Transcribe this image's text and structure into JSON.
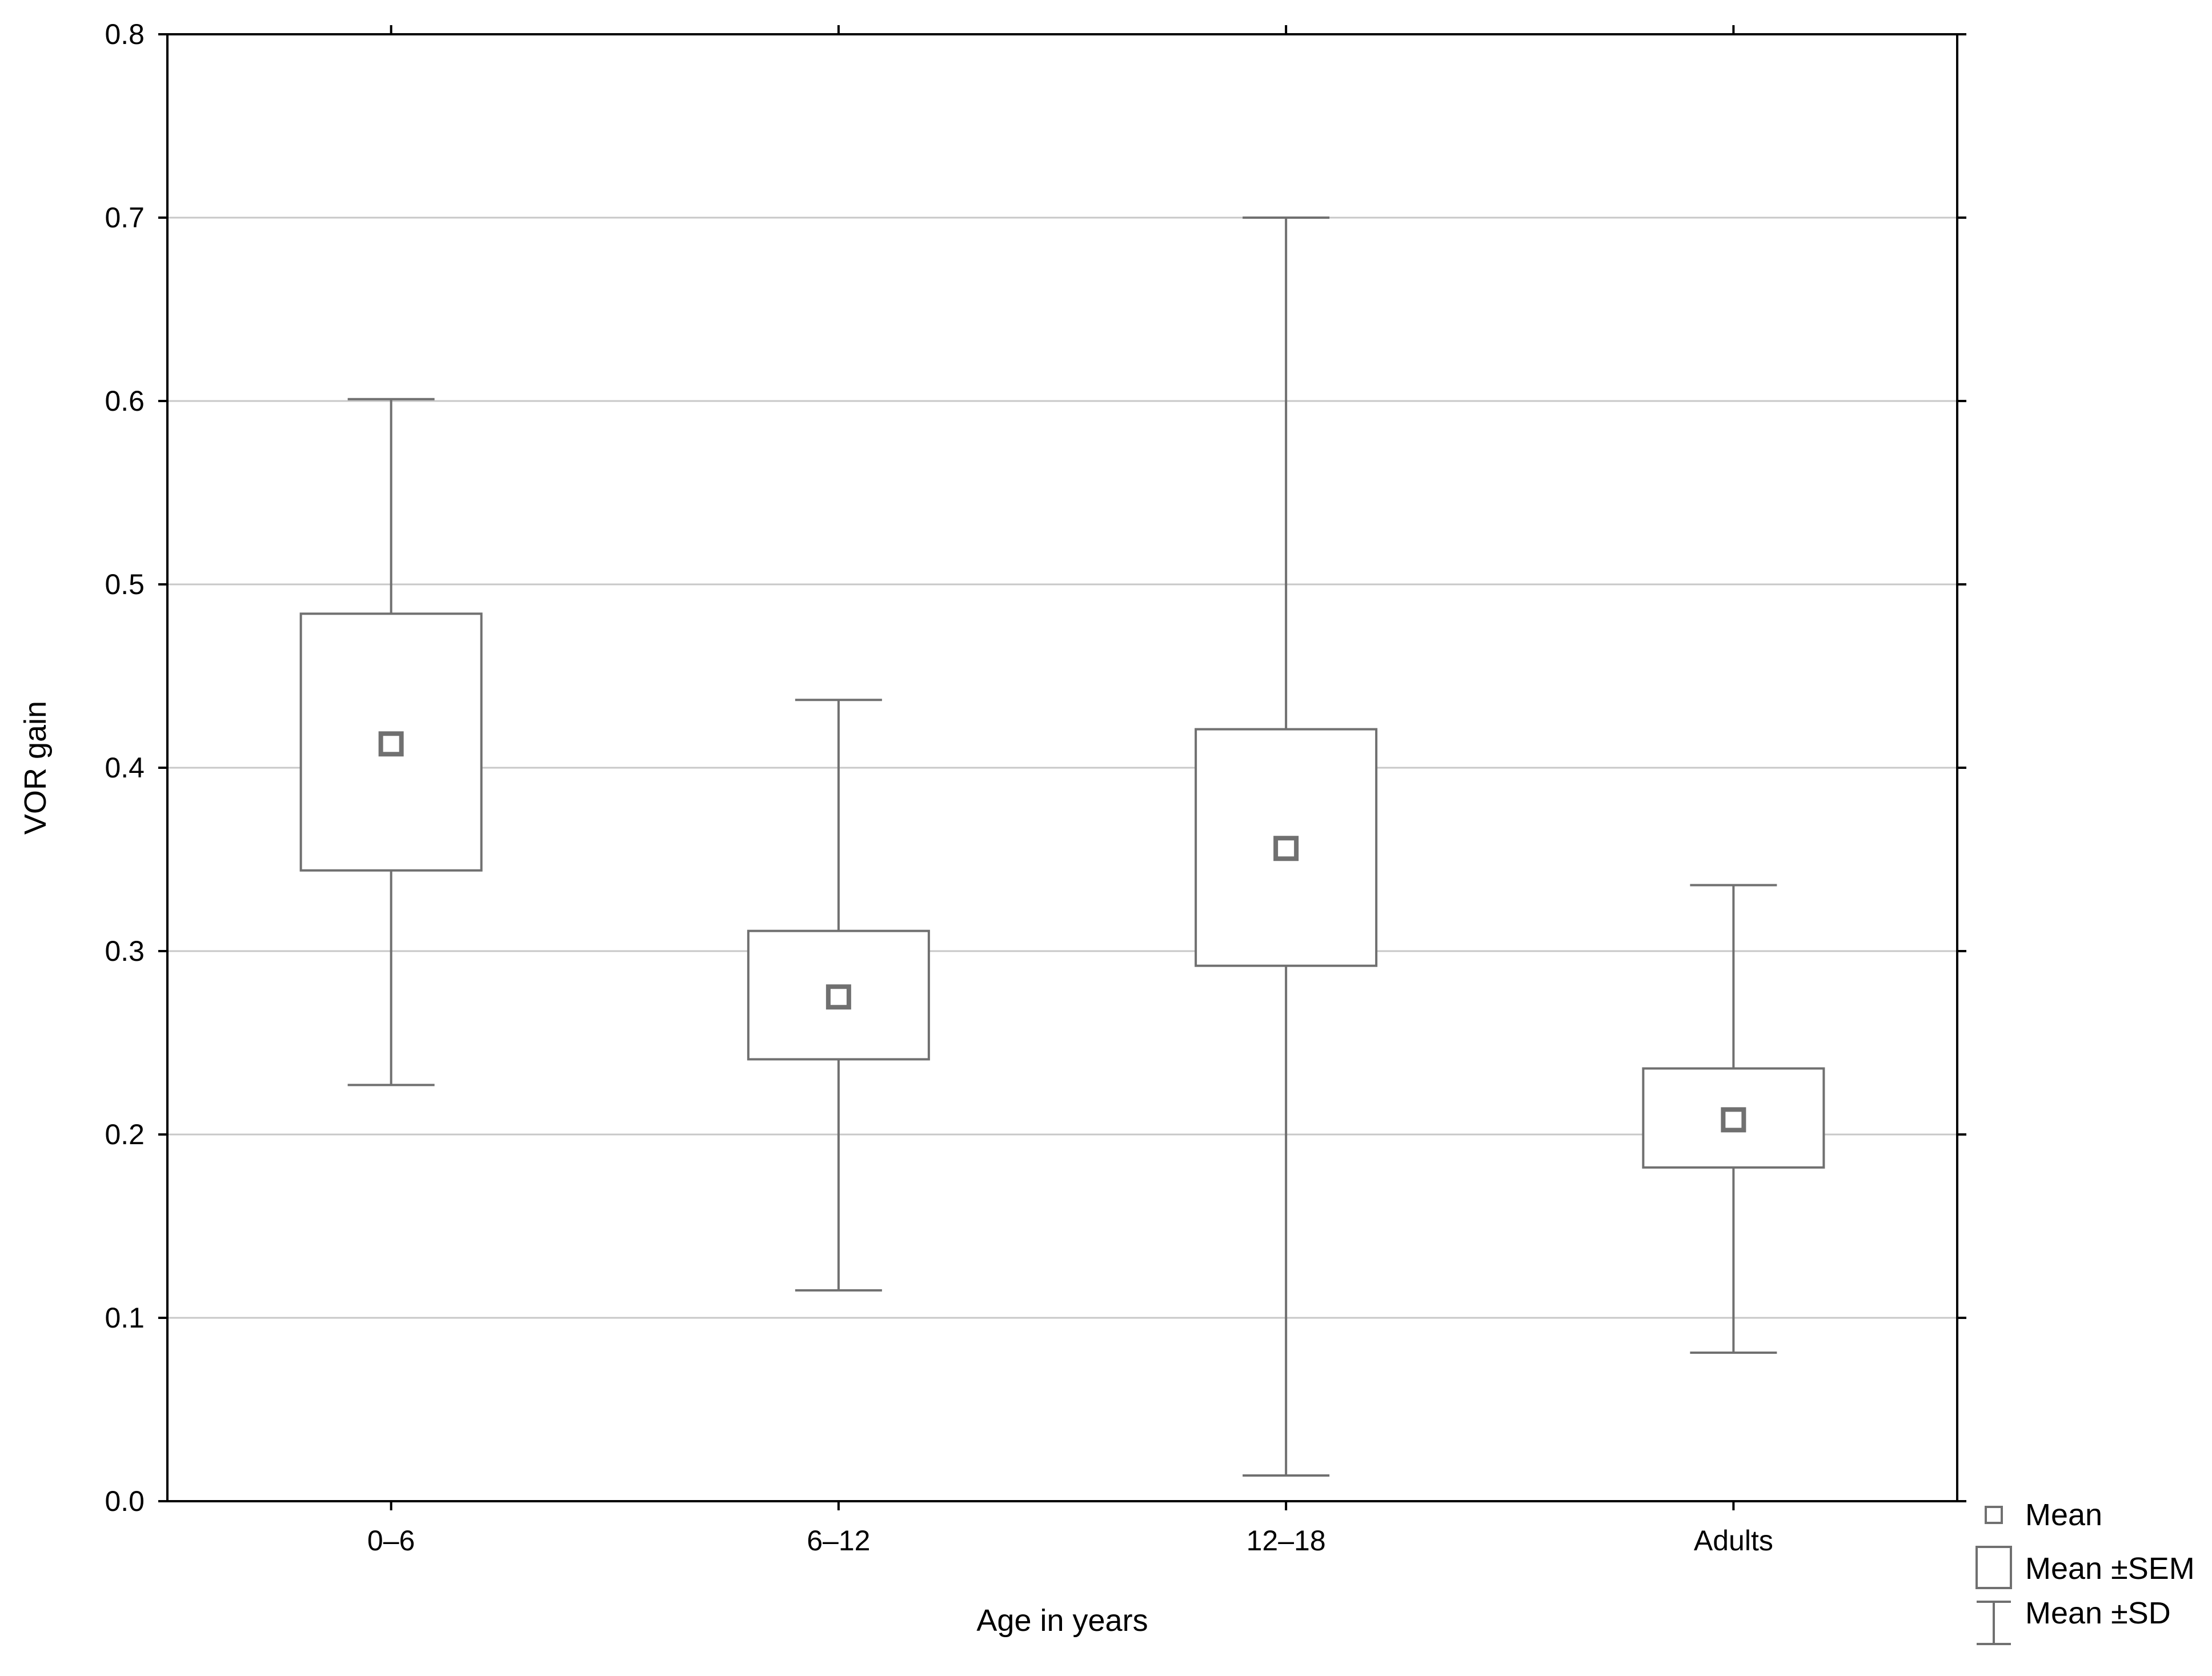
{
  "chart_data": {
    "type": "box",
    "title": "",
    "xlabel": "Age in years",
    "ylabel": "VOR gain",
    "ylim": [
      0.0,
      0.8
    ],
    "yticks": [
      "0.0",
      "0.1",
      "0.2",
      "0.3",
      "0.4",
      "0.5",
      "0.6",
      "0.7",
      "0.8"
    ],
    "grid": true,
    "legend_position": "bottom-right outside plot",
    "categories": [
      "0–6",
      "6–12",
      "12–18",
      "Adults"
    ],
    "series": [
      {
        "category": "0–6",
        "mean": 0.413,
        "sem_low": 0.344,
        "sem_high": 0.484,
        "sd_low": 0.227,
        "sd_high": 0.601
      },
      {
        "category": "6–12",
        "mean": 0.275,
        "sem_low": 0.241,
        "sem_high": 0.311,
        "sd_low": 0.115,
        "sd_high": 0.437
      },
      {
        "category": "12–18",
        "mean": 0.356,
        "sem_low": 0.292,
        "sem_high": 0.421,
        "sd_low": 0.014,
        "sd_high": 0.7
      },
      {
        "category": "Adults",
        "mean": 0.208,
        "sem_low": 0.182,
        "sem_high": 0.236,
        "sd_low": 0.081,
        "sd_high": 0.336
      }
    ],
    "legend": [
      {
        "symbol": "mean",
        "label": "Mean"
      },
      {
        "symbol": "sem-box",
        "label": "Mean ±SEM"
      },
      {
        "symbol": "sd-whisker",
        "label": "Mean ±SD"
      }
    ],
    "colors": {
      "box": "#707070",
      "grid": "#c8c8c8",
      "frame": "#000000"
    }
  }
}
